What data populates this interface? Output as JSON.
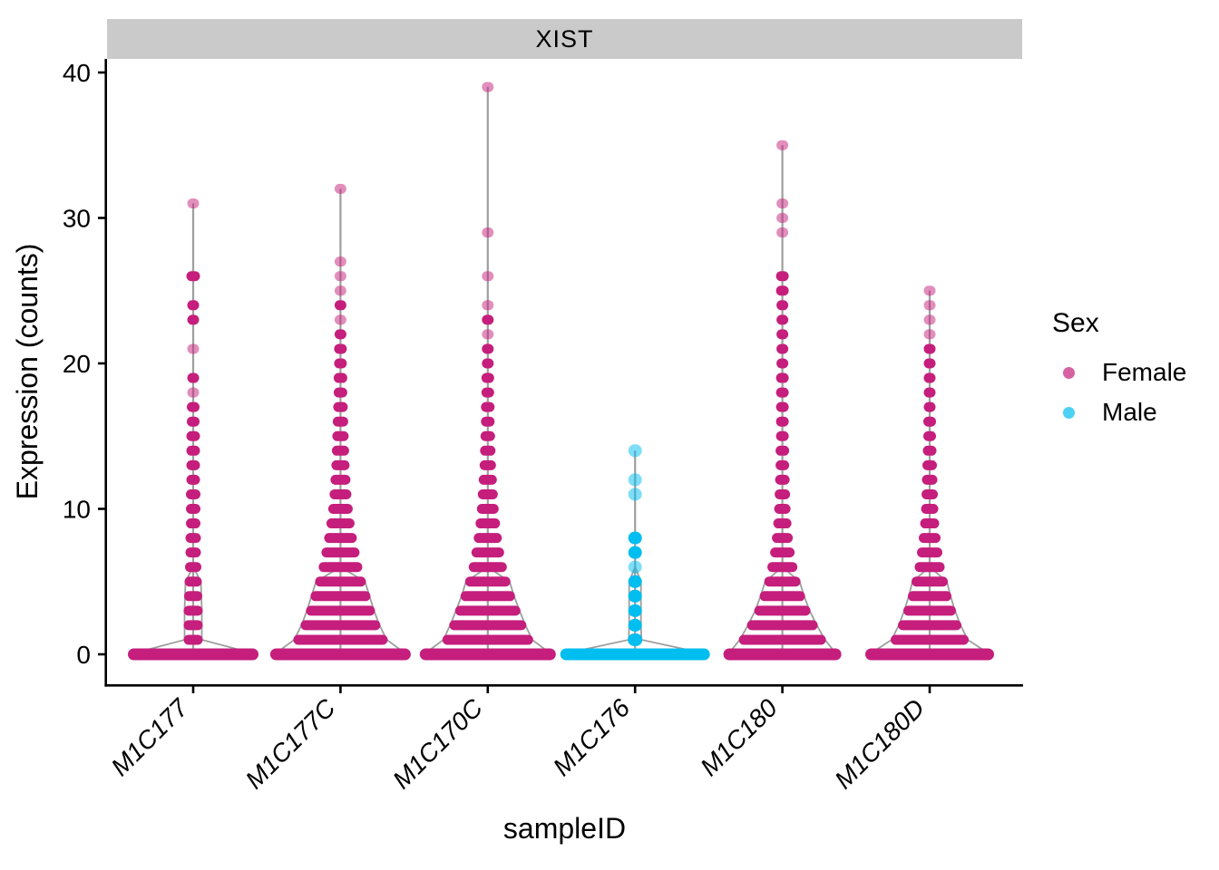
{
  "figure": {
    "strip_title": "XIST"
  },
  "chart_data": {
    "type": "scatter",
    "variant": "stacked-dot violin (dot width encodes cell count at each expression level)",
    "title": "XIST",
    "xlabel": "sampleID",
    "ylabel": "Expression (counts)",
    "ylim": [
      0,
      40
    ],
    "y_ticks": [
      0,
      10,
      20,
      30,
      40
    ],
    "grid": "off",
    "categories": [
      "M1C177",
      "M1C177C",
      "M1C170C",
      "M1C176",
      "M1C180",
      "M1C180D"
    ],
    "legend": {
      "title": "Sex",
      "position": "right",
      "entries": [
        {
          "label": "Female",
          "color": "#C51E7C"
        },
        {
          "label": "Male",
          "color": "#00BEF0"
        }
      ]
    },
    "sex_colors": {
      "Female": "#C51E7C",
      "Male": "#00BEF0"
    },
    "stem_color": "#9E9E9E",
    "levels_format": "[expression_value, dot_width_px, is_light_single_point]",
    "samples": [
      {
        "sampleID": "M1C177",
        "sex": "Female",
        "max_expression": 31,
        "base0_width": 144,
        "levels": [
          [
            31,
            13,
            1
          ],
          [
            26,
            15,
            0
          ],
          [
            24,
            13,
            0
          ],
          [
            23,
            13,
            0
          ],
          [
            21,
            13,
            1
          ],
          [
            19,
            13,
            0
          ],
          [
            18,
            13,
            1
          ],
          [
            17,
            14,
            0
          ],
          [
            16,
            14,
            0
          ],
          [
            15,
            15,
            0
          ],
          [
            14,
            15,
            0
          ],
          [
            13,
            15,
            0
          ],
          [
            12,
            15,
            0
          ],
          [
            11,
            16,
            0
          ],
          [
            10,
            16,
            0
          ],
          [
            9,
            16,
            0
          ],
          [
            8,
            17,
            0
          ],
          [
            7,
            17,
            0
          ],
          [
            6,
            18,
            0
          ],
          [
            5,
            19,
            0
          ],
          [
            4,
            20,
            0
          ],
          [
            3,
            21,
            0
          ],
          [
            2,
            21,
            0
          ],
          [
            1,
            21,
            0
          ]
        ]
      },
      {
        "sampleID": "M1C177C",
        "sex": "Female",
        "max_expression": 32,
        "base0_width": 155,
        "levels": [
          [
            32,
            13,
            1
          ],
          [
            27,
            13,
            1
          ],
          [
            26,
            13,
            1
          ],
          [
            25,
            13,
            1
          ],
          [
            24,
            13,
            0
          ],
          [
            23,
            13,
            1
          ],
          [
            22,
            13,
            0
          ],
          [
            21,
            14,
            0
          ],
          [
            20,
            14,
            0
          ],
          [
            19,
            15,
            0
          ],
          [
            18,
            15,
            0
          ],
          [
            17,
            16,
            0
          ],
          [
            16,
            17,
            0
          ],
          [
            15,
            18,
            0
          ],
          [
            14,
            19,
            0
          ],
          [
            13,
            20,
            0
          ],
          [
            12,
            22,
            0
          ],
          [
            11,
            24,
            0
          ],
          [
            10,
            27,
            0
          ],
          [
            9,
            31,
            0
          ],
          [
            8,
            36,
            0
          ],
          [
            7,
            42,
            0
          ],
          [
            6,
            48,
            0
          ],
          [
            5,
            56,
            0
          ],
          [
            4,
            66,
            0
          ],
          [
            3,
            76,
            0
          ],
          [
            2,
            88,
            0
          ],
          [
            1,
            104,
            0
          ]
        ]
      },
      {
        "sampleID": "M1C170C",
        "sex": "Female",
        "max_expression": 39,
        "base0_width": 150,
        "levels": [
          [
            39,
            13,
            1
          ],
          [
            29,
            13,
            1
          ],
          [
            26,
            13,
            1
          ],
          [
            24,
            13,
            1
          ],
          [
            23,
            13,
            0
          ],
          [
            22,
            13,
            1
          ],
          [
            21,
            13,
            0
          ],
          [
            20,
            13,
            0
          ],
          [
            19,
            14,
            0
          ],
          [
            18,
            14,
            0
          ],
          [
            17,
            15,
            0
          ],
          [
            16,
            15,
            0
          ],
          [
            15,
            16,
            0
          ],
          [
            14,
            17,
            0
          ],
          [
            13,
            18,
            0
          ],
          [
            12,
            20,
            0
          ],
          [
            11,
            22,
            0
          ],
          [
            10,
            24,
            0
          ],
          [
            9,
            27,
            0
          ],
          [
            8,
            31,
            0
          ],
          [
            7,
            36,
            0
          ],
          [
            6,
            42,
            0
          ],
          [
            5,
            50,
            0
          ],
          [
            4,
            60,
            0
          ],
          [
            3,
            72,
            0
          ],
          [
            2,
            85,
            0
          ],
          [
            1,
            100,
            0
          ]
        ]
      },
      {
        "sampleID": "M1C176",
        "sex": "Male",
        "max_expression": 14,
        "base0_width": 165,
        "levels": [
          [
            14,
            15,
            1
          ],
          [
            12,
            15,
            1
          ],
          [
            11,
            15,
            1
          ],
          [
            8,
            15,
            0
          ],
          [
            7,
            15,
            0
          ],
          [
            6,
            15,
            1
          ],
          [
            5,
            15,
            0
          ],
          [
            4,
            15,
            0
          ],
          [
            3,
            15,
            0
          ],
          [
            2,
            15,
            0
          ],
          [
            1,
            16,
            0
          ]
        ]
      },
      {
        "sampleID": "M1C180",
        "sex": "Female",
        "max_expression": 35,
        "base0_width": 130,
        "levels": [
          [
            35,
            13,
            1
          ],
          [
            31,
            13,
            1
          ],
          [
            30,
            13,
            1
          ],
          [
            29,
            13,
            1
          ],
          [
            26,
            14,
            0
          ],
          [
            25,
            14,
            0
          ],
          [
            24,
            13,
            0
          ],
          [
            23,
            13,
            0
          ],
          [
            22,
            13,
            0
          ],
          [
            21,
            13,
            0
          ],
          [
            20,
            13,
            0
          ],
          [
            19,
            14,
            0
          ],
          [
            18,
            14,
            0
          ],
          [
            17,
            14,
            0
          ],
          [
            16,
            14,
            0
          ],
          [
            15,
            14,
            0
          ],
          [
            14,
            15,
            0
          ],
          [
            13,
            15,
            0
          ],
          [
            12,
            16,
            0
          ],
          [
            11,
            17,
            0
          ],
          [
            10,
            18,
            0
          ],
          [
            9,
            20,
            0
          ],
          [
            8,
            23,
            0
          ],
          [
            7,
            27,
            0
          ],
          [
            6,
            33,
            0
          ],
          [
            5,
            40,
            0
          ],
          [
            4,
            50,
            0
          ],
          [
            3,
            62,
            0
          ],
          [
            2,
            78,
            0
          ],
          [
            1,
            96,
            0
          ]
        ]
      },
      {
        "sampleID": "M1C180D",
        "sex": "Female",
        "max_expression": 25,
        "base0_width": 142,
        "levels": [
          [
            25,
            13,
            1
          ],
          [
            24,
            13,
            1
          ],
          [
            23,
            13,
            1
          ],
          [
            22,
            13,
            1
          ],
          [
            21,
            13,
            0
          ],
          [
            20,
            13,
            0
          ],
          [
            19,
            13,
            0
          ],
          [
            18,
            13,
            0
          ],
          [
            17,
            13,
            0
          ],
          [
            16,
            14,
            0
          ],
          [
            15,
            14,
            0
          ],
          [
            14,
            15,
            0
          ],
          [
            13,
            16,
            0
          ],
          [
            12,
            17,
            0
          ],
          [
            11,
            18,
            0
          ],
          [
            10,
            19,
            0
          ],
          [
            9,
            21,
            0
          ],
          [
            8,
            24,
            0
          ],
          [
            7,
            28,
            0
          ],
          [
            6,
            33,
            0
          ],
          [
            5,
            40,
            0
          ],
          [
            4,
            48,
            0
          ],
          [
            3,
            58,
            0
          ],
          [
            2,
            70,
            0
          ],
          [
            1,
            86,
            0
          ]
        ]
      }
    ]
  }
}
